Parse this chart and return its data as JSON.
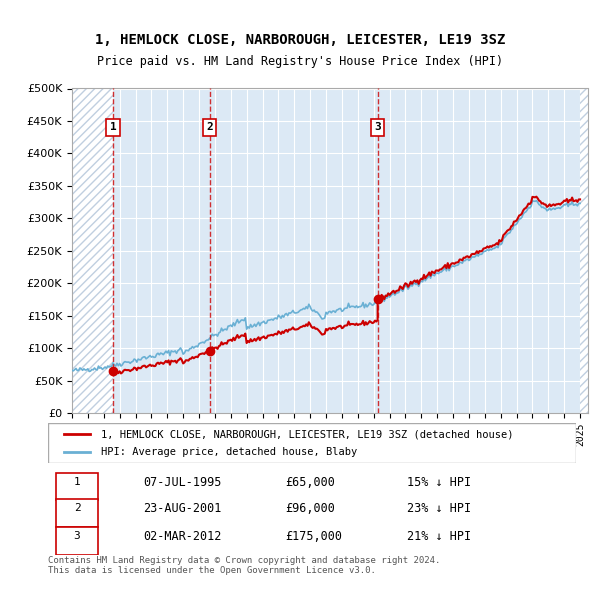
{
  "title_line1": "1, HEMLOCK CLOSE, NARBOROUGH, LEICESTER, LE19 3SZ",
  "title_line2": "Price paid vs. HM Land Registry's House Price Index (HPI)",
  "hpi_color": "#6ab0d4",
  "price_color": "#cc0000",
  "bg_color": "#dce9f5",
  "hatch_color": "#c0cfe0",
  "sale_dates": [
    "1995-07-07",
    "2001-08-23",
    "2012-03-02"
  ],
  "sale_prices": [
    65000,
    96000,
    175000
  ],
  "sale_labels": [
    "1",
    "2",
    "3"
  ],
  "legend_property": "1, HEMLOCK CLOSE, NARBOROUGH, LEICESTER, LE19 3SZ (detached house)",
  "legend_hpi": "HPI: Average price, detached house, Blaby",
  "table_data": [
    [
      "1",
      "07-JUL-1995",
      "£65,000",
      "15% ↓ HPI"
    ],
    [
      "2",
      "23-AUG-2001",
      "£96,000",
      "23% ↓ HPI"
    ],
    [
      "3",
      "02-MAR-2012",
      "£175,000",
      "21% ↓ HPI"
    ]
  ],
  "footnote": "Contains HM Land Registry data © Crown copyright and database right 2024.\nThis data is licensed under the Open Government Licence v3.0.",
  "ylim": [
    0,
    500000
  ],
  "yticks": [
    0,
    50000,
    100000,
    150000,
    200000,
    250000,
    300000,
    350000,
    400000,
    450000,
    500000
  ],
  "xlim_start": 1993.0,
  "xlim_end": 2025.5
}
